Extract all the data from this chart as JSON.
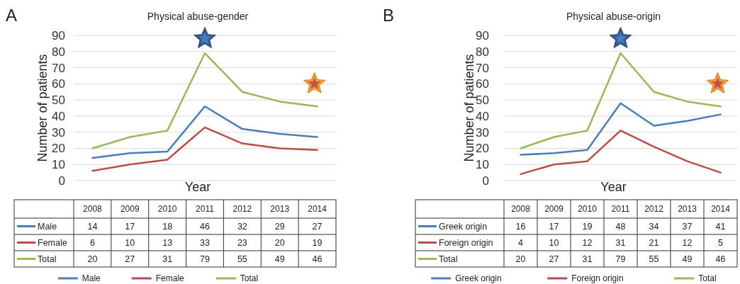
{
  "chart_data": [
    {
      "type": "line",
      "title": "Physical abuse-gender",
      "xlabel": "Year",
      "ylabel": "Number of patients",
      "annotations": [
        "A"
      ],
      "categories": [
        "2008",
        "2009",
        "2010",
        "2011",
        "2012",
        "2013",
        "2014"
      ],
      "series": [
        {
          "name": "Male",
          "color": "#4a7ebb",
          "values": [
            14,
            17,
            18,
            46,
            32,
            29,
            27
          ]
        },
        {
          "name": "Female",
          "color": "#be4b48",
          "values": [
            6,
            10,
            13,
            33,
            23,
            20,
            19
          ]
        },
        {
          "name": "Total",
          "color": "#98b954",
          "values": [
            20,
            27,
            31,
            79,
            55,
            49,
            46
          ]
        }
      ],
      "ylim": [
        0,
        90
      ],
      "yticks": [
        0,
        10,
        20,
        30,
        40,
        50,
        60,
        70,
        80,
        90
      ],
      "grid": "y",
      "legend": "bottom",
      "data_labels": true
    },
    {
      "type": "line",
      "title": "Physical abuse-origin",
      "xlabel": "Year",
      "ylabel": "Number of patients",
      "annotations": [
        "B"
      ],
      "categories": [
        "2008",
        "2009",
        "2010",
        "2011",
        "2012",
        "2013",
        "2014"
      ],
      "series": [
        {
          "name": "Greek origin",
          "color": "#4a7ebb",
          "values": [
            16,
            17,
            19,
            48,
            34,
            37,
            41
          ]
        },
        {
          "name": "Foreign origin",
          "color": "#be4b48",
          "values": [
            4,
            10,
            12,
            31,
            21,
            12,
            5
          ]
        },
        {
          "name": "Total",
          "color": "#98b954",
          "values": [
            20,
            27,
            31,
            79,
            55,
            49,
            46
          ]
        }
      ],
      "ylim": [
        0,
        90
      ],
      "yticks": [
        0,
        10,
        20,
        30,
        40,
        50,
        60,
        70,
        80,
        90
      ],
      "grid": "y",
      "legend": "bottom",
      "data_labels": true
    }
  ]
}
